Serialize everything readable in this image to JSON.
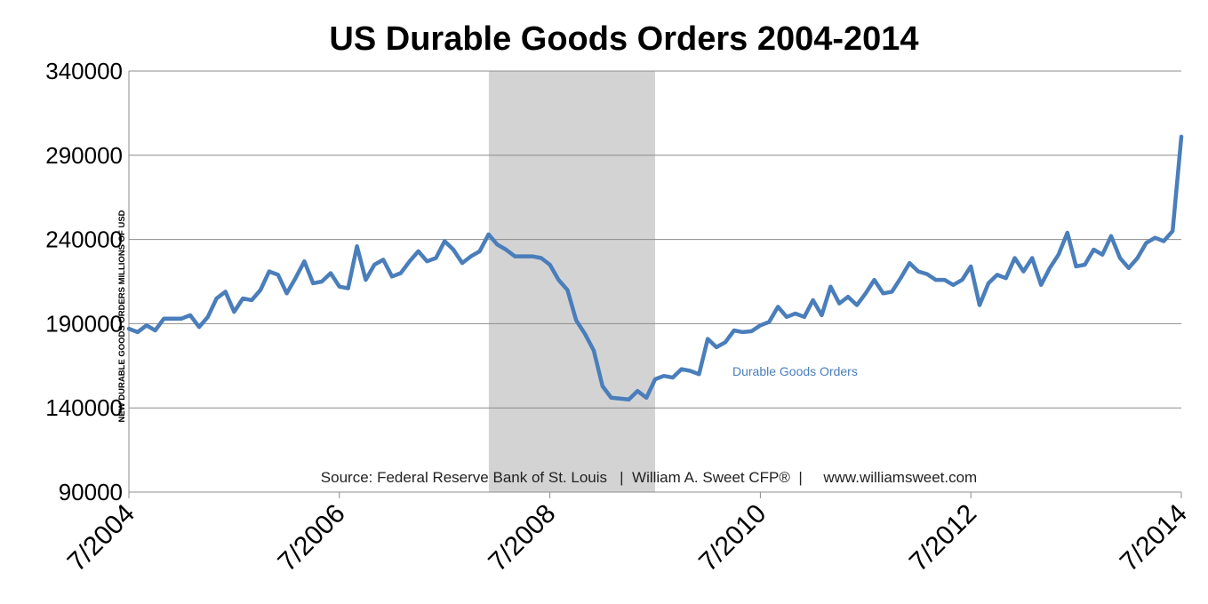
{
  "chart_data": {
    "type": "line",
    "title": "US Durable Goods Orders 2004-2014",
    "ylabel": "NEW DURABLE GOODS ORDERS MILLIONS OF USD",
    "xlabel": "",
    "ylim": [
      90000,
      340000
    ],
    "yticks": [
      90000,
      140000,
      190000,
      240000,
      290000,
      340000
    ],
    "ytick_labels": [
      "90000",
      "140000",
      "190000",
      "240000",
      "290000",
      "340000"
    ],
    "xlim": [
      2004.5,
      2014.5
    ],
    "xticks": [
      2004.5,
      2006.5,
      2008.5,
      2010.5,
      2012.5,
      2014.5
    ],
    "xtick_labels": [
      "7/2004",
      "7/2006",
      "7/2008",
      "7/2010",
      "7/2012",
      "7/2014"
    ],
    "grid": true,
    "recession_shading": {
      "start": 2007.92,
      "end": 2009.5,
      "color": "#d3d3d3"
    },
    "source_text": "Source: Federal Reserve Bank of St. Louis   |  William A. Sweet CFP®  |     www.williamsweet.com",
    "series": [
      {
        "name": "Durable Goods Orders",
        "color": "#4a7ebb",
        "x": [
          2004.5,
          2004.583,
          2004.667,
          2004.75,
          2004.833,
          2004.917,
          2005.0,
          2005.083,
          2005.167,
          2005.25,
          2005.333,
          2005.417,
          2005.5,
          2005.583,
          2005.667,
          2005.75,
          2005.833,
          2005.917,
          2006.0,
          2006.083,
          2006.167,
          2006.25,
          2006.333,
          2006.417,
          2006.5,
          2006.583,
          2006.667,
          2006.75,
          2006.833,
          2006.917,
          2007.0,
          2007.083,
          2007.167,
          2007.25,
          2007.333,
          2007.417,
          2007.5,
          2007.583,
          2007.667,
          2007.75,
          2007.833,
          2007.917,
          2008.0,
          2008.083,
          2008.167,
          2008.25,
          2008.333,
          2008.417,
          2008.5,
          2008.583,
          2008.667,
          2008.75,
          2008.833,
          2008.917,
          2009.0,
          2009.083,
          2009.167,
          2009.25,
          2009.333,
          2009.417,
          2009.5,
          2009.583,
          2009.667,
          2009.75,
          2009.833,
          2009.917,
          2010.0,
          2010.083,
          2010.167,
          2010.25,
          2010.333,
          2010.417,
          2010.5,
          2010.583,
          2010.667,
          2010.75,
          2010.833,
          2010.917,
          2011.0,
          2011.083,
          2011.167,
          2011.25,
          2011.333,
          2011.417,
          2011.5,
          2011.583,
          2011.667,
          2011.75,
          2011.833,
          2011.917,
          2012.0,
          2012.083,
          2012.167,
          2012.25,
          2012.333,
          2012.417,
          2012.5,
          2012.583,
          2012.667,
          2012.75,
          2012.833,
          2012.917,
          2013.0,
          2013.083,
          2013.167,
          2013.25,
          2013.333,
          2013.417,
          2013.5,
          2013.583,
          2013.667,
          2013.75,
          2013.833,
          2013.917,
          2014.0,
          2014.083,
          2014.167,
          2014.25,
          2014.333,
          2014.417,
          2014.5
        ],
        "values": [
          187000,
          185000,
          189000,
          186000,
          193000,
          193000,
          193000,
          195000,
          188000,
          194000,
          205000,
          209000,
          197000,
          205000,
          204000,
          210000,
          221000,
          219000,
          208000,
          217000,
          227000,
          214000,
          215000,
          220000,
          212000,
          211000,
          236000,
          216000,
          225000,
          228000,
          218000,
          220000,
          227000,
          233000,
          227000,
          229000,
          239000,
          234000,
          226000,
          230000,
          233000,
          243000,
          237000,
          234000,
          230000,
          230000,
          230000,
          229000,
          225000,
          216000,
          210000,
          192000,
          184000,
          174000,
          153000,
          146000,
          145500,
          145000,
          150000,
          146000,
          157000,
          159000,
          158000,
          163000,
          162000,
          160000,
          181000,
          176000,
          179000,
          186000,
          185000,
          185500,
          189000,
          191000,
          200000,
          194000,
          196000,
          194000,
          204000,
          195000,
          212000,
          202000,
          206000,
          201000,
          208000,
          216000,
          208000,
          209000,
          217000,
          226000,
          221000,
          219500,
          216000,
          216000,
          213000,
          216000,
          224000,
          201000,
          214000,
          219000,
          217000,
          229000,
          221000,
          229000,
          213000,
          223000,
          231000,
          244000,
          224000,
          225000,
          234000,
          231000,
          242000,
          229000,
          223000,
          229000,
          238000,
          241000,
          239000,
          245000,
          301000
        ]
      }
    ]
  }
}
